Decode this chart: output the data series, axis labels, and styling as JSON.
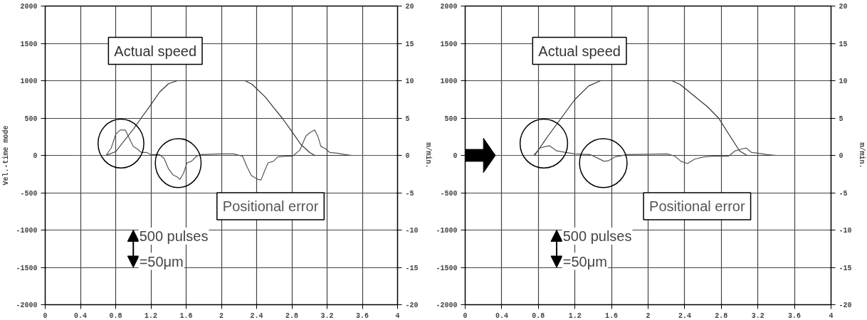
{
  "chart_data": [
    {
      "type": "line",
      "ylabel": "Vel.-time mode",
      "y2label": "m/min.",
      "xlim": [
        0,
        4
      ],
      "xticks": [
        0,
        0.4,
        0.8,
        1.2,
        1.6,
        2,
        2.4,
        2.8,
        3.2,
        3.6,
        4
      ],
      "ylim": [
        -2000,
        2000
      ],
      "yticks": [
        -2000,
        -1500,
        -1000,
        -500,
        0,
        500,
        1000,
        1500,
        2000
      ],
      "y2lim": [
        -20,
        20
      ],
      "y2ticks": [
        -20,
        -15,
        -10,
        -5,
        0,
        5,
        10,
        15,
        20
      ],
      "grid": true,
      "series": [
        {
          "name": "Actual speed",
          "color": "#333333",
          "axis": "y2",
          "x": [
            0.3,
            0.69,
            0.8,
            0.9,
            1.0,
            1.09,
            1.2,
            1.3,
            1.4,
            1.5,
            2.27,
            2.35,
            2.5,
            2.6,
            2.69,
            2.8,
            2.9,
            3.0,
            3.06,
            4.0
          ],
          "values": [
            0,
            0,
            0.5,
            2,
            3.5,
            5,
            6.8,
            8.5,
            9.6,
            10,
            10,
            9.5,
            7.8,
            6.3,
            5,
            3.2,
            1.5,
            0.4,
            0,
            0
          ]
        },
        {
          "name": "Positional error",
          "color": "#555555",
          "x": [
            0.3,
            0.69,
            0.75,
            0.8,
            0.85,
            0.91,
            0.95,
            1.0,
            1.04,
            1.09,
            1.15,
            1.2,
            1.3,
            1.35,
            1.4,
            1.45,
            1.5,
            1.53,
            1.57,
            1.61,
            1.66,
            1.72,
            1.77,
            1.99,
            2.14,
            2.24,
            2.29,
            2.34,
            2.41,
            2.45,
            2.49,
            2.53,
            2.59,
            2.64,
            2.74,
            2.81,
            2.89,
            2.96,
            3.01,
            3.06,
            3.1,
            3.13,
            3.18,
            3.23,
            3.31,
            3.41,
            3.48,
            4.0
          ],
          "values": [
            0,
            0,
            100,
            280,
            340,
            340,
            240,
            120,
            90,
            40,
            40,
            10,
            10,
            -40,
            -180,
            -260,
            -290,
            -320,
            -240,
            -100,
            -80,
            -10,
            10,
            20,
            20,
            -10,
            -150,
            -270,
            -320,
            -330,
            -210,
            -100,
            -80,
            -20,
            -10,
            -10,
            70,
            260,
            310,
            340,
            240,
            120,
            90,
            40,
            30,
            10,
            0,
            0
          ]
        }
      ],
      "annotations": [
        "500 pulses",
        "=50μm"
      ]
    },
    {
      "type": "line",
      "y2label": "m/min.",
      "xlim": [
        0,
        4
      ],
      "xticks": [
        0,
        0.4,
        0.8,
        1.2,
        1.6,
        2,
        2.4,
        2.8,
        3.2,
        3.6,
        4
      ],
      "ylim": [
        -2000,
        2000
      ],
      "yticks": [
        -2000,
        -1500,
        -1000,
        -500,
        0,
        500,
        1000,
        1500,
        2000
      ],
      "y2lim": [
        -20,
        20
      ],
      "y2ticks": [
        -20,
        -15,
        -10,
        -5,
        0,
        5,
        10,
        15,
        20
      ],
      "grid": true,
      "series": [
        {
          "name": "Actual speed",
          "color": "#333333",
          "axis": "y2",
          "x": [
            0.33,
            0.76,
            0.9,
            1.05,
            1.2,
            1.35,
            1.48,
            2.26,
            2.35,
            2.5,
            2.65,
            2.77,
            2.9,
            3.0,
            3.08,
            4.0
          ],
          "values": [
            0,
            0,
            2.5,
            5,
            7.5,
            9.3,
            10,
            10,
            9.5,
            8,
            6.5,
            5,
            2.5,
            0.6,
            0,
            0
          ]
        },
        {
          "name": "Positional error",
          "color": "#555555",
          "x": [
            0.33,
            0.75,
            0.82,
            0.92,
            1.0,
            1.1,
            1.2,
            1.37,
            1.42,
            1.52,
            1.57,
            1.64,
            1.77,
            2.21,
            2.29,
            2.36,
            2.43,
            2.51,
            2.61,
            2.71,
            2.88,
            2.95,
            3.07,
            3.13,
            3.2,
            3.3,
            3.4,
            4.0
          ],
          "values": [
            0,
            0,
            100,
            130,
            60,
            40,
            20,
            10,
            -20,
            -80,
            -70,
            -20,
            10,
            20,
            -10,
            -80,
            -110,
            -50,
            -20,
            -10,
            -10,
            60,
            100,
            40,
            30,
            10,
            0,
            0
          ]
        }
      ],
      "annotations": [
        "500 pulses",
        "=50μm"
      ]
    }
  ]
}
